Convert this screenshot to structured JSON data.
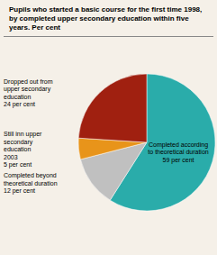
{
  "chart_data": {
    "type": "pie",
    "title": "Pupils who started a basic course for the first time 1998,\nby completed upper secondary education within five\nyears. Per cent",
    "categories": [
      "Completed according\nto theoretical duration\n59 per cent",
      "Completed beyond\ntheoretical duration\n12 per cent",
      "Still inn upper\nsecondary\neducation\n2003\n5 per cent",
      "Dropped out from\nupper secondary\neducation\n24 per cent"
    ],
    "values": [
      59,
      12,
      5,
      24
    ],
    "colors": [
      "#2aacaa",
      "#c0c0c0",
      "#e8941a",
      "#a02010"
    ]
  }
}
